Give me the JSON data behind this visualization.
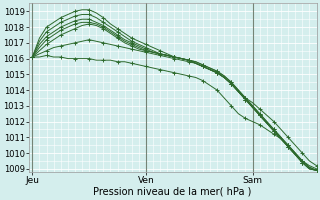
{
  "xlabel": "Pression niveau de la mer( hPa )",
  "bg_color": "#d4eeed",
  "grid_color": "#ffffff",
  "line_color": "#2d6a2d",
  "marker": "+",
  "ylim": [
    1008.8,
    1019.5
  ],
  "yticks": [
    1009,
    1010,
    1011,
    1012,
    1013,
    1014,
    1015,
    1016,
    1017,
    1018,
    1019
  ],
  "day_labels": [
    "Jeu",
    "Ven",
    "Sam"
  ],
  "xtick_positions": [
    0,
    32,
    62
  ],
  "n_points": 41,
  "series": [
    [
      1016.1,
      1016.1,
      1016.2,
      1016.1,
      1016.1,
      1016.0,
      1016.0,
      1016.0,
      1016.0,
      1015.9,
      1015.9,
      1015.9,
      1015.8,
      1015.8,
      1015.7,
      1015.6,
      1015.5,
      1015.4,
      1015.3,
      1015.2,
      1015.1,
      1015.0,
      1014.9,
      1014.8,
      1014.6,
      1014.3,
      1014.0,
      1013.5,
      1013.0,
      1012.5,
      1012.2,
      1012.0,
      1011.8,
      1011.5,
      1011.2,
      1010.9,
      1010.5,
      1010.0,
      1009.5,
      1009.2,
      1009.0
    ],
    [
      1016.1,
      1016.3,
      1016.5,
      1016.7,
      1016.8,
      1016.9,
      1017.0,
      1017.1,
      1017.2,
      1017.1,
      1017.0,
      1016.9,
      1016.8,
      1016.7,
      1016.6,
      1016.5,
      1016.4,
      1016.3,
      1016.2,
      1016.1,
      1016.0,
      1015.9,
      1015.8,
      1015.7,
      1015.5,
      1015.3,
      1015.1,
      1014.8,
      1014.4,
      1013.9,
      1013.5,
      1013.2,
      1012.8,
      1012.4,
      1012.0,
      1011.5,
      1011.0,
      1010.5,
      1010.0,
      1009.5,
      1009.2
    ],
    [
      1016.1,
      1016.5,
      1016.9,
      1017.2,
      1017.5,
      1017.7,
      1017.9,
      1018.1,
      1018.2,
      1018.1,
      1017.9,
      1017.6,
      1017.3,
      1017.0,
      1016.8,
      1016.6,
      1016.5,
      1016.4,
      1016.3,
      1016.2,
      1016.1,
      1016.0,
      1015.9,
      1015.8,
      1015.6,
      1015.4,
      1015.2,
      1014.9,
      1014.5,
      1014.0,
      1013.5,
      1013.0,
      1012.5,
      1012.0,
      1011.5,
      1011.0,
      1010.5,
      1010.0,
      1009.5,
      1009.1,
      1008.9
    ],
    [
      1016.1,
      1016.7,
      1017.2,
      1017.5,
      1017.8,
      1018.0,
      1018.2,
      1018.3,
      1018.3,
      1018.2,
      1018.0,
      1017.7,
      1017.4,
      1017.1,
      1016.9,
      1016.7,
      1016.5,
      1016.4,
      1016.3,
      1016.2,
      1016.1,
      1016.0,
      1015.9,
      1015.8,
      1015.6,
      1015.4,
      1015.2,
      1014.9,
      1014.5,
      1014.0,
      1013.5,
      1013.0,
      1012.5,
      1012.0,
      1011.5,
      1011.0,
      1010.5,
      1010.0,
      1009.5,
      1009.1,
      1008.9
    ],
    [
      1016.1,
      1016.9,
      1017.4,
      1017.7,
      1018.0,
      1018.2,
      1018.4,
      1018.5,
      1018.5,
      1018.3,
      1018.1,
      1017.8,
      1017.5,
      1017.2,
      1017.0,
      1016.8,
      1016.6,
      1016.4,
      1016.3,
      1016.2,
      1016.1,
      1016.0,
      1015.9,
      1015.7,
      1015.5,
      1015.3,
      1015.1,
      1014.8,
      1014.4,
      1013.9,
      1013.4,
      1012.9,
      1012.4,
      1011.9,
      1011.4,
      1010.9,
      1010.4,
      1009.9,
      1009.4,
      1009.0,
      1008.9
    ],
    [
      1016.1,
      1017.1,
      1017.7,
      1018.0,
      1018.3,
      1018.5,
      1018.7,
      1018.8,
      1018.8,
      1018.6,
      1018.3,
      1018.0,
      1017.7,
      1017.4,
      1017.1,
      1016.9,
      1016.7,
      1016.5,
      1016.3,
      1016.2,
      1016.1,
      1016.0,
      1015.9,
      1015.7,
      1015.5,
      1015.3,
      1015.1,
      1014.8,
      1014.4,
      1013.9,
      1013.4,
      1012.9,
      1012.4,
      1011.9,
      1011.4,
      1010.9,
      1010.4,
      1009.9,
      1009.4,
      1009.0,
      1008.9
    ],
    [
      1016.1,
      1017.3,
      1018.0,
      1018.3,
      1018.6,
      1018.8,
      1019.0,
      1019.1,
      1019.1,
      1018.9,
      1018.6,
      1018.2,
      1017.9,
      1017.6,
      1017.3,
      1017.1,
      1016.9,
      1016.7,
      1016.5,
      1016.3,
      1016.1,
      1016.0,
      1015.9,
      1015.7,
      1015.5,
      1015.3,
      1015.1,
      1014.8,
      1014.4,
      1013.9,
      1013.4,
      1012.9,
      1012.4,
      1011.9,
      1011.4,
      1010.9,
      1010.4,
      1009.9,
      1009.4,
      1009.0,
      1008.9
    ]
  ]
}
